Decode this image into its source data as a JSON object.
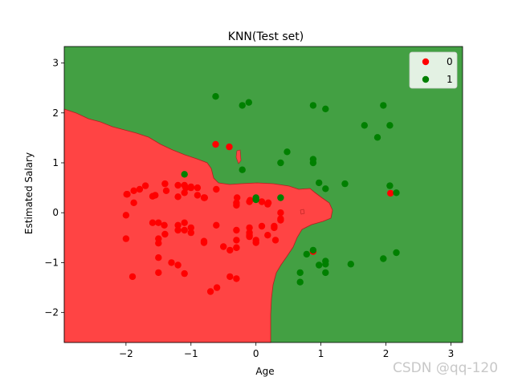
{
  "chart_data": {
    "type": "scatter",
    "title": "KNN(Test set)",
    "xlabel": "Age",
    "ylabel": "Estimated Salary",
    "xlim": [
      -2.95,
      3.18
    ],
    "ylim": [
      -2.6,
      3.33
    ],
    "xticks": [
      -2,
      -1,
      0,
      1,
      2,
      3
    ],
    "yticks": [
      -2,
      -1,
      0,
      1,
      2,
      3
    ],
    "grid": false,
    "legend_position": "top-right",
    "colors": {
      "class0": "#ff0000",
      "class1": "#008000",
      "region0": "#ff4444",
      "region1": "#43a043"
    },
    "decision_regions": [
      {
        "name": "0",
        "color": "#ff4444"
      },
      {
        "name": "1",
        "color": "#43a043"
      }
    ],
    "series": [
      {
        "name": "0",
        "color": "#ff0000",
        "x": [
          -0.62,
          -0.41,
          -1.98,
          -1.88,
          -1.79,
          -1.7,
          -1.55,
          -1.4,
          -1.38,
          -1.2,
          -1.1,
          -1.08,
          -1.0,
          -0.9,
          -0.8,
          -0.61,
          -0.3,
          -0.3,
          -0.1,
          0.09,
          0.19,
          -1.99,
          -1.88,
          -1.59,
          -1.2,
          -1.1,
          -1.0,
          -0.9,
          -0.79,
          -0.29,
          -0.09,
          0.18,
          0.38,
          -2.0,
          -1.59,
          -1.5,
          -1.41,
          -1.2,
          -1.1,
          -1.0,
          -0.61,
          -0.3,
          -0.1,
          0.09,
          0.28,
          0.38,
          -1.5,
          -1.4,
          -1.1,
          -1.0,
          -0.8,
          -0.3,
          -0.1,
          -0.1,
          0.28,
          0.38,
          -2.0,
          -1.5,
          -1.2,
          -0.8,
          -0.3,
          -0.1,
          0.0,
          0.18,
          0.3,
          -1.5,
          -1.2,
          -1.3,
          -0.4,
          -0.5,
          -0.3,
          0.0,
          0.88,
          -1.9,
          -1.5,
          -1.1,
          -0.4,
          -0.3,
          -0.6,
          -0.7,
          2.07
        ],
        "y": [
          1.37,
          1.32,
          0.37,
          0.44,
          0.47,
          0.54,
          0.35,
          0.58,
          0.44,
          0.32,
          0.55,
          0.5,
          0.52,
          0.5,
          0.3,
          0.47,
          0.2,
          0.15,
          0.22,
          0.22,
          0.2,
          0.37,
          0.2,
          0.33,
          0.55,
          0.4,
          0.5,
          0.35,
          0.3,
          0.3,
          0.25,
          0.17,
          0.0,
          -0.05,
          -0.2,
          -0.2,
          -0.25,
          -0.35,
          -0.2,
          -0.3,
          -0.25,
          -0.35,
          -0.3,
          -0.27,
          -0.27,
          -0.12,
          -0.61,
          -0.43,
          -0.35,
          -0.4,
          -0.57,
          -0.55,
          -0.4,
          -0.48,
          -0.3,
          -0.15,
          -0.52,
          -0.52,
          -0.25,
          -0.6,
          -0.7,
          -0.45,
          -0.55,
          -0.45,
          -0.55,
          -0.9,
          -1.05,
          -1.0,
          -0.75,
          -0.68,
          -0.7,
          -0.6,
          -0.78,
          -1.28,
          -1.2,
          -1.22,
          -1.28,
          -1.32,
          -1.5,
          -1.58,
          0.39
        ]
      },
      {
        "name": "1",
        "color": "#008000",
        "x": [
          -0.62,
          -0.21,
          -0.11,
          0.88,
          1.07,
          1.96,
          2.06,
          1.67,
          1.87,
          0.48,
          0.38,
          0.88,
          0.88,
          -0.21,
          -1.1,
          0.97,
          1.07,
          1.37,
          2.06,
          2.16,
          0.0,
          0.0,
          0.38,
          0.0,
          0.88,
          1.07,
          1.07,
          0.78,
          0.97,
          1.46,
          1.96,
          2.16,
          0.68,
          1.07,
          0.68
        ],
        "y": [
          2.33,
          2.15,
          2.21,
          2.15,
          2.08,
          2.15,
          1.75,
          1.75,
          1.51,
          1.22,
          1.0,
          1.07,
          1.0,
          0.86,
          0.77,
          0.6,
          0.48,
          0.58,
          0.54,
          0.4,
          0.3,
          0.26,
          0.3,
          0.27,
          -0.75,
          -0.97,
          -1.03,
          -0.83,
          -1.05,
          -1.03,
          -0.92,
          -0.8,
          -1.2,
          -1.2,
          -1.39
        ]
      }
    ]
  },
  "watermark": "CSDN @qq-120"
}
